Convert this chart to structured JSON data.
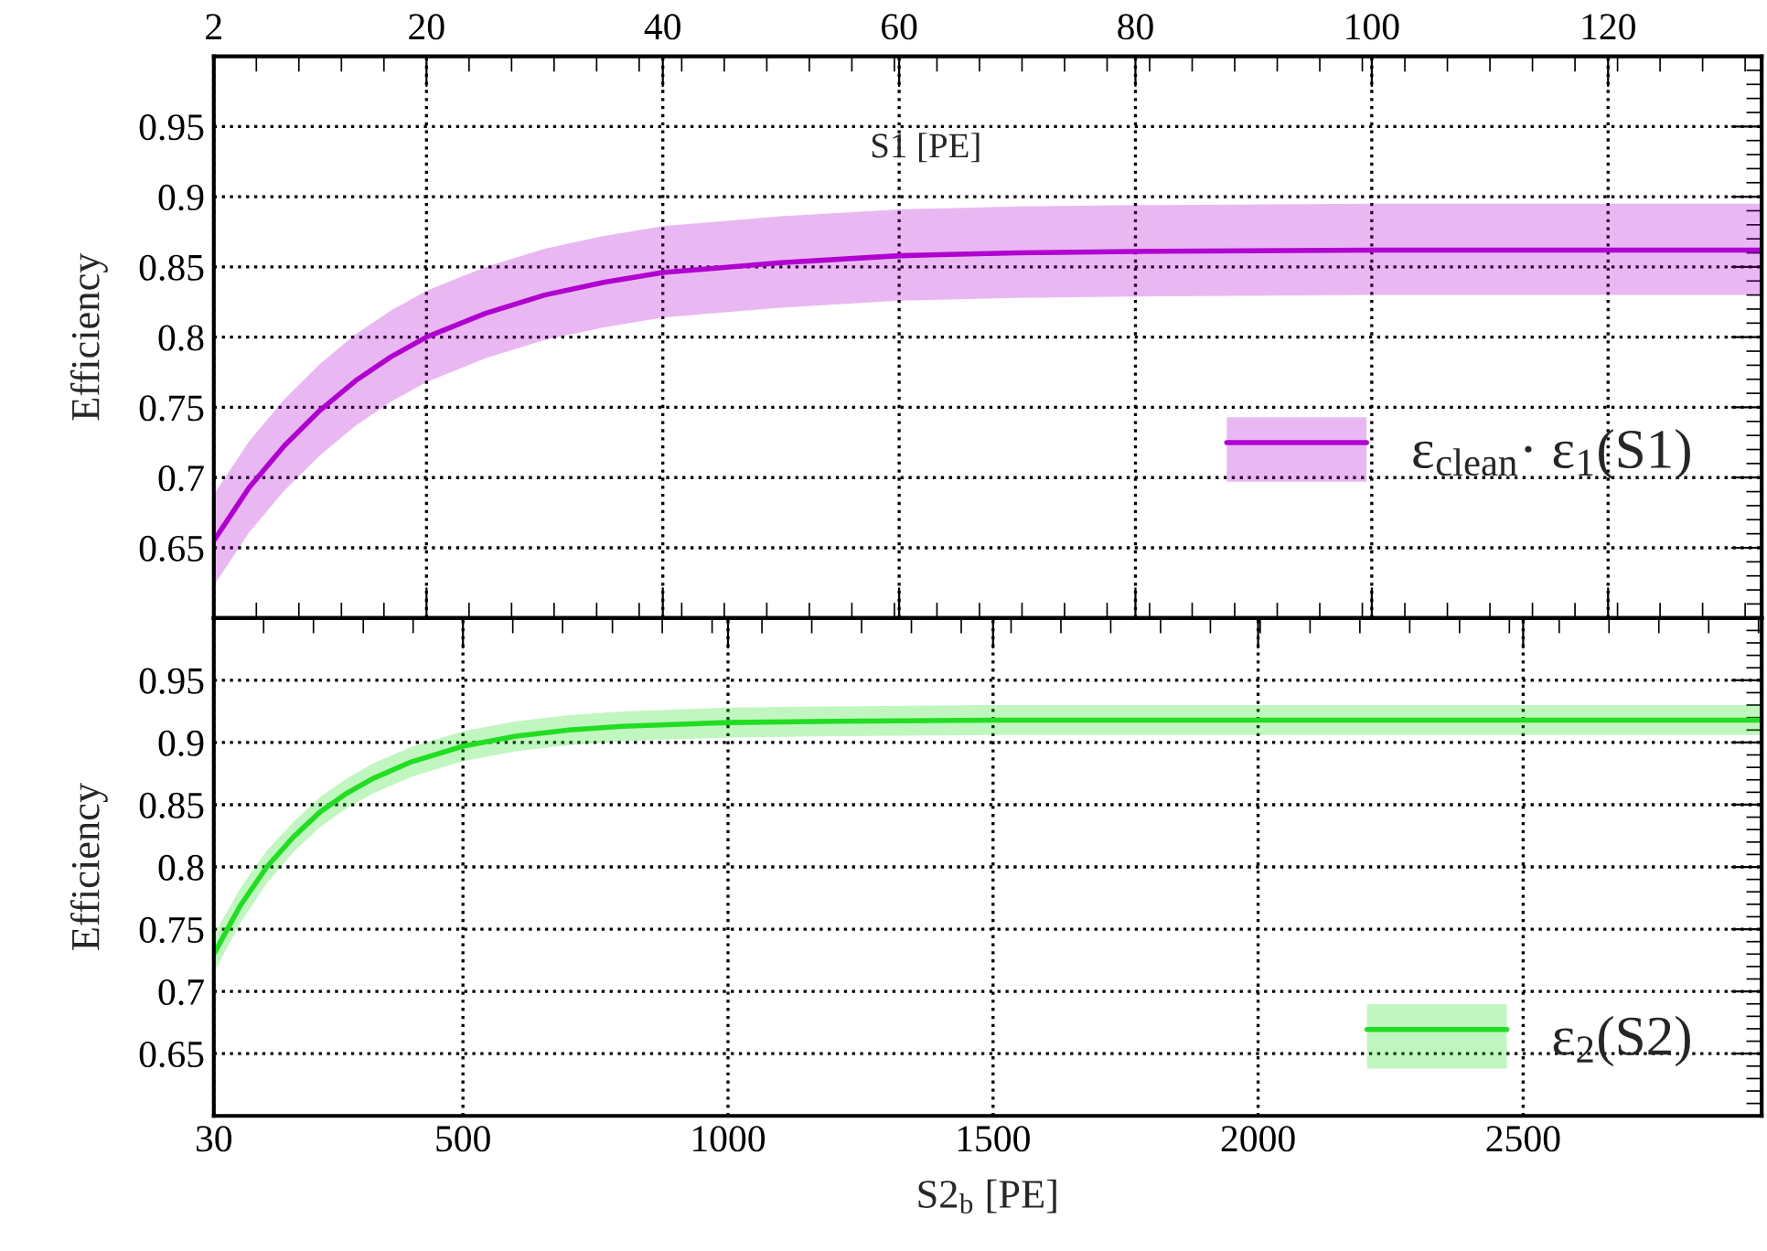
{
  "chart_data": [
    {
      "type": "line",
      "xlabel": "S1 [PE]",
      "ylabel": "Efficiency",
      "xlim": [
        2,
        133
      ],
      "xticks": [
        2,
        20,
        40,
        60,
        80,
        100,
        120
      ],
      "ylim": [
        0.6,
        1.0
      ],
      "yticks": [
        0.65,
        0.7,
        0.75,
        0.8,
        0.85,
        0.9,
        0.95
      ],
      "grid": true,
      "legend": "right",
      "line_style": "solid",
      "series": [
        {
          "name": "ε$_{clean}$· ε$_{1}$(S1)",
          "color": "#b000d0",
          "x": [
            2,
            5,
            8,
            11,
            14,
            17,
            20,
            25,
            30,
            35,
            40,
            50,
            60,
            70,
            80,
            100,
            120,
            133
          ],
          "values": [
            0.655,
            0.693,
            0.723,
            0.748,
            0.769,
            0.786,
            0.8,
            0.817,
            0.83,
            0.839,
            0.846,
            0.853,
            0.858,
            0.86,
            0.861,
            0.862,
            0.862,
            0.862
          ],
          "lower": [
            0.623,
            0.661,
            0.691,
            0.716,
            0.737,
            0.754,
            0.768,
            0.785,
            0.798,
            0.807,
            0.814,
            0.821,
            0.826,
            0.828,
            0.829,
            0.83,
            0.83,
            0.83
          ],
          "upper": [
            0.688,
            0.726,
            0.756,
            0.781,
            0.802,
            0.819,
            0.833,
            0.85,
            0.863,
            0.872,
            0.879,
            0.886,
            0.891,
            0.893,
            0.894,
            0.895,
            0.895,
            0.895
          ]
        }
      ]
    },
    {
      "type": "line",
      "xlabel": "S2$_{b}$ [PE]",
      "ylabel": "Efficiency",
      "xlim": [
        30,
        2950
      ],
      "xticks": [
        30,
        500,
        1000,
        1500,
        2000,
        2500
      ],
      "ylim": [
        0.6,
        1.0
      ],
      "yticks": [
        0.65,
        0.7,
        0.75,
        0.8,
        0.85,
        0.9,
        0.95
      ],
      "grid": true,
      "legend": "bottom right",
      "line_style": "solid",
      "series": [
        {
          "name": "ε$_{2}$(S2)",
          "color": "#22dd22",
          "x": [
            30,
            80,
            130,
            180,
            230,
            280,
            330,
            400,
            500,
            600,
            700,
            800,
            1000,
            1200,
            1500,
            2000,
            2500,
            2950
          ],
          "values": [
            0.73,
            0.769,
            0.8,
            0.824,
            0.844,
            0.859,
            0.871,
            0.884,
            0.897,
            0.905,
            0.91,
            0.913,
            0.916,
            0.917,
            0.918,
            0.918,
            0.918,
            0.918
          ],
          "lower": [
            0.715,
            0.755,
            0.787,
            0.812,
            0.832,
            0.847,
            0.859,
            0.872,
            0.885,
            0.893,
            0.898,
            0.901,
            0.904,
            0.905,
            0.906,
            0.906,
            0.906,
            0.906
          ],
          "upper": [
            0.745,
            0.783,
            0.813,
            0.836,
            0.856,
            0.871,
            0.883,
            0.896,
            0.909,
            0.917,
            0.922,
            0.925,
            0.928,
            0.929,
            0.93,
            0.93,
            0.93,
            0.93
          ]
        }
      ]
    }
  ]
}
